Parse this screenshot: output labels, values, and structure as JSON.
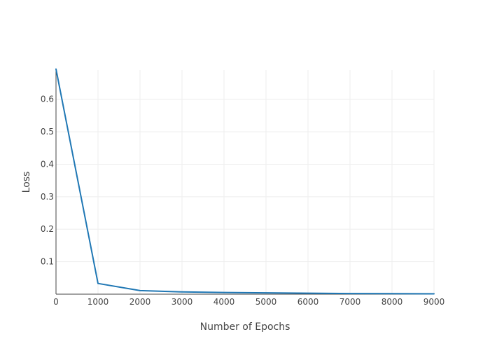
{
  "chart_data": {
    "type": "line",
    "title": "",
    "xlabel": "Number of Epochs",
    "ylabel": "Loss",
    "xlim": [
      0,
      9000
    ],
    "ylim": [
      0,
      0.69
    ],
    "x_ticks": [
      0,
      1000,
      2000,
      3000,
      4000,
      5000,
      6000,
      7000,
      8000,
      9000
    ],
    "y_ticks": [
      0.1,
      0.2,
      0.3,
      0.4,
      0.5,
      0.6
    ],
    "grid": true,
    "legend": "none",
    "series": [
      {
        "color": "#1f77b4",
        "x": [
          0,
          1000,
          2000,
          3000,
          4000,
          5000,
          6000,
          7000,
          8000,
          9000
        ],
        "y": [
          0.693,
          0.033,
          0.011,
          0.007,
          0.005,
          0.004,
          0.003,
          0.002,
          0.0015,
          0.0012
        ]
      }
    ]
  }
}
